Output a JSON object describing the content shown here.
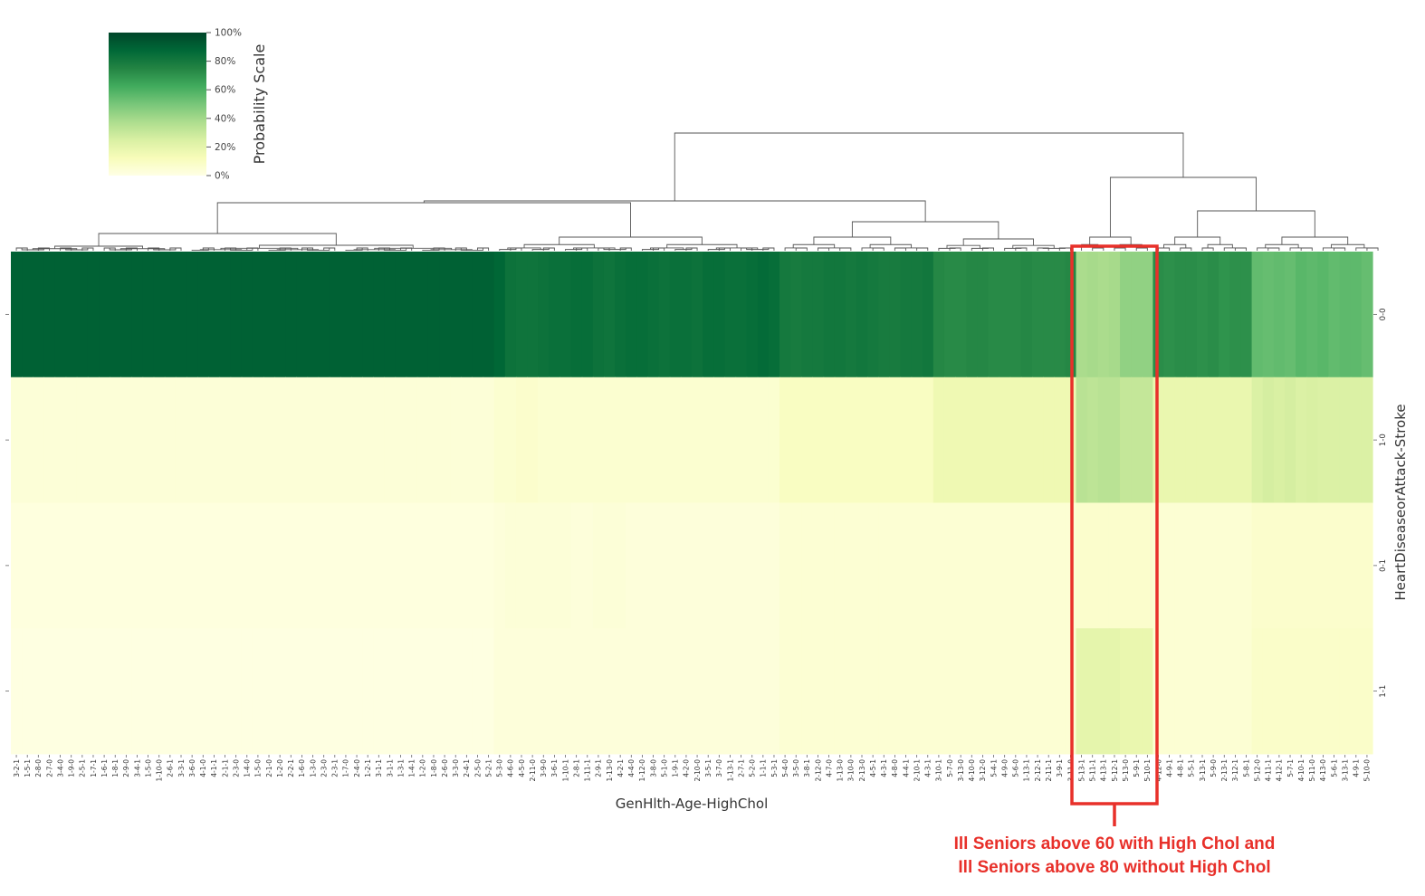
{
  "chart_data": {
    "type": "heatmap",
    "xlabel": "GenHlth-Age-HighChol",
    "ylabel": "HeartDiseaseorAttack-Stroke",
    "row_labels": [
      "0-0",
      "1-0",
      "0-1",
      "1-1"
    ],
    "column_labels": [
      "3-2-1",
      "1-5-1",
      "2-8-0",
      "2-7-0",
      "3-4-0",
      "1-9-0",
      "2-5-1",
      "1-7-1",
      "1-6-1",
      "1-8-1",
      "2-9-0",
      "3-4-1",
      "1-5-0",
      "1-10-0",
      "2-6-1",
      "3-3-1",
      "3-6-0",
      "4-1-0",
      "4-1-1",
      "2-1-1",
      "2-3-0",
      "1-4-0",
      "1-5-0",
      "2-1-0",
      "1-2-0",
      "2-2-1",
      "1-6-0",
      "1-3-0",
      "2-3-0",
      "2-3-1",
      "1-7-0",
      "2-4-0",
      "1-2-1",
      "3-1-1",
      "3-1-1",
      "1-3-1",
      "1-4-1",
      "1-2-0",
      "1-8-0",
      "2-6-0",
      "3-3-0",
      "2-4-1",
      "2-5-0",
      "5-2-1",
      "5-3-0",
      "4-6-0",
      "4-5-0",
      "2-11-0",
      "3-9-0",
      "3-6-1",
      "1-10-1",
      "2-8-1",
      "1-11-1",
      "2-9-1",
      "1-13-0",
      "4-2-1",
      "4-4-0",
      "1-12-0",
      "3-8-0",
      "5-1-0",
      "1-9-1",
      "4-2-0",
      "2-10-0",
      "3-5-1",
      "3-7-0",
      "1-13-1",
      "2-7-1",
      "5-2-0",
      "1-1-1",
      "5-3-1",
      "5-4-0",
      "3-5-0",
      "3-8-1",
      "2-12-0",
      "4-7-0",
      "1-13-0",
      "3-10-0",
      "2-13-0",
      "4-5-1",
      "4-3-1",
      "4-8-0",
      "4-4-1",
      "2-10-1",
      "4-3-1",
      "3-10-1",
      "5-7-0",
      "3-13-0",
      "4-10-0",
      "3-12-0",
      "5-4-1",
      "4-9-0",
      "5-6-0",
      "1-13-1",
      "2-12-1",
      "2-11-1",
      "3-9-1",
      "3-11-0",
      "5-13-1",
      "5-11-1",
      "4-13-1",
      "5-12-1",
      "5-13-0",
      "5-9-1",
      "5-10-1",
      "4-12-0",
      "4-9-1",
      "4-8-1",
      "5-5-1",
      "3-13-1",
      "5-9-0",
      "2-13-1",
      "3-12-1",
      "5-8-1",
      "5-12-0",
      "4-11-1",
      "4-12-1",
      "5-7-1",
      "4-10-1",
      "5-11-0",
      "4-13-0",
      "5-6-1",
      "3-13-1",
      "4-9-1",
      "5-10-0"
    ],
    "values_percent": [
      [
        90,
        90,
        90,
        90,
        90,
        90,
        90,
        90,
        90,
        90,
        90,
        90,
        90,
        90,
        90,
        90,
        90,
        90,
        90,
        90,
        90,
        90,
        90,
        90,
        90,
        90,
        90,
        90,
        90,
        90,
        90,
        90,
        90,
        90,
        90,
        90,
        90,
        90,
        90,
        90,
        90,
        90,
        90,
        90,
        88,
        83,
        82,
        82,
        83,
        84,
        84,
        85,
        85,
        83,
        82,
        84,
        85,
        85,
        84,
        83,
        84,
        84,
        83,
        85,
        85,
        84,
        84,
        85,
        86,
        85,
        80,
        79,
        80,
        80,
        81,
        81,
        80,
        81,
        80,
        79,
        79,
        80,
        80,
        81,
        74,
        73,
        73,
        74,
        74,
        73,
        73,
        73,
        74,
        73,
        73,
        73,
        74,
        38,
        39,
        38,
        39,
        44,
        44,
        44,
        72,
        71,
        72,
        72,
        71,
        72,
        70,
        71,
        71,
        55,
        54,
        55,
        54,
        57,
        56,
        57,
        55,
        56,
        56,
        54,
        55
      ],
      [
        4,
        4,
        4,
        4,
        4,
        4,
        4,
        4,
        4,
        4,
        4,
        4,
        4,
        4,
        4,
        4,
        4,
        4,
        4,
        4,
        4,
        4,
        4,
        4,
        4,
        4,
        4,
        4,
        4,
        4,
        4,
        4,
        4,
        4,
        4,
        4,
        4,
        4,
        4,
        4,
        4,
        4,
        4,
        4,
        6,
        6,
        7,
        7,
        6,
        6,
        6,
        6,
        6,
        6,
        6,
        6,
        6,
        6,
        6,
        6,
        6,
        6,
        6,
        6,
        6,
        6,
        6,
        6,
        6,
        6,
        10,
        10,
        10,
        10,
        10,
        10,
        10,
        10,
        10,
        10,
        10,
        10,
        10,
        10,
        16,
        16,
        16,
        16,
        16,
        16,
        16,
        16,
        16,
        16,
        16,
        16,
        16,
        34,
        33,
        34,
        34,
        31,
        31,
        31,
        18,
        18,
        18,
        18,
        18,
        18,
        18,
        18,
        18,
        24,
        26,
        25,
        26,
        24,
        25,
        24,
        24,
        24,
        24,
        24,
        24
      ],
      [
        2,
        2,
        2,
        2,
        2,
        2,
        2,
        2,
        2,
        2,
        2,
        2,
        2,
        2,
        2,
        2,
        2,
        2,
        2,
        2,
        2,
        2,
        2,
        2,
        2,
        2,
        2,
        2,
        2,
        2,
        2,
        2,
        2,
        2,
        2,
        2,
        2,
        2,
        2,
        2,
        2,
        2,
        2,
        2,
        3,
        4,
        4,
        4,
        4,
        4,
        4,
        3,
        3,
        4,
        4,
        4,
        3,
        3,
        3,
        3,
        3,
        3,
        3,
        3,
        3,
        3,
        3,
        3,
        3,
        3,
        5,
        5,
        5,
        5,
        5,
        5,
        5,
        5,
        5,
        5,
        5,
        5,
        5,
        5,
        5,
        5,
        5,
        5,
        5,
        5,
        5,
        5,
        5,
        5,
        5,
        5,
        5,
        7,
        7,
        7,
        7,
        7,
        7,
        7,
        5,
        5,
        5,
        5,
        5,
        5,
        5,
        5,
        5,
        7,
        7,
        7,
        7,
        7,
        7,
        7,
        7,
        7,
        7,
        7,
        7
      ],
      [
        1,
        1,
        1,
        1,
        1,
        1,
        1,
        1,
        1,
        1,
        1,
        1,
        1,
        1,
        1,
        1,
        1,
        1,
        1,
        1,
        1,
        1,
        1,
        1,
        1,
        1,
        1,
        1,
        1,
        1,
        1,
        1,
        1,
        1,
        1,
        1,
        1,
        1,
        1,
        1,
        1,
        1,
        1,
        1,
        3,
        3,
        3,
        3,
        3,
        3,
        3,
        3,
        3,
        3,
        3,
        3,
        3,
        3,
        3,
        3,
        3,
        3,
        3,
        3,
        3,
        3,
        3,
        3,
        3,
        3,
        5,
        5,
        5,
        5,
        5,
        5,
        5,
        5,
        5,
        5,
        5,
        5,
        5,
        5,
        5,
        5,
        5,
        5,
        5,
        5,
        5,
        5,
        5,
        5,
        5,
        5,
        5,
        20,
        20,
        20,
        20,
        18,
        18,
        18,
        5,
        5,
        5,
        5,
        5,
        5,
        5,
        5,
        5,
        8,
        8,
        8,
        8,
        8,
        8,
        8,
        8,
        8,
        8,
        8,
        8
      ]
    ],
    "colorbar": {
      "label": "Probability Scale",
      "ticks": [
        "100%",
        "80%",
        "60%",
        "40%",
        "20%",
        "0%"
      ],
      "range": [
        0,
        100
      ],
      "colormap": [
        "#ffffe5",
        "#f7fcb9",
        "#d9f0a3",
        "#addd8e",
        "#78c679",
        "#41ab5d",
        "#238443",
        "#006837",
        "#004529"
      ]
    },
    "dendrogram": true,
    "highlight": {
      "color": "#e8302a",
      "columns": [
        "5-13-1",
        "5-11-1",
        "4-13-1",
        "5-12-1",
        "5-13-0",
        "5-9-1",
        "5-10-1"
      ],
      "annotation_lines": [
        "Ill Seniors above 60 with High Chol and",
        "Ill Seniors above 80 without High Chol"
      ]
    }
  }
}
